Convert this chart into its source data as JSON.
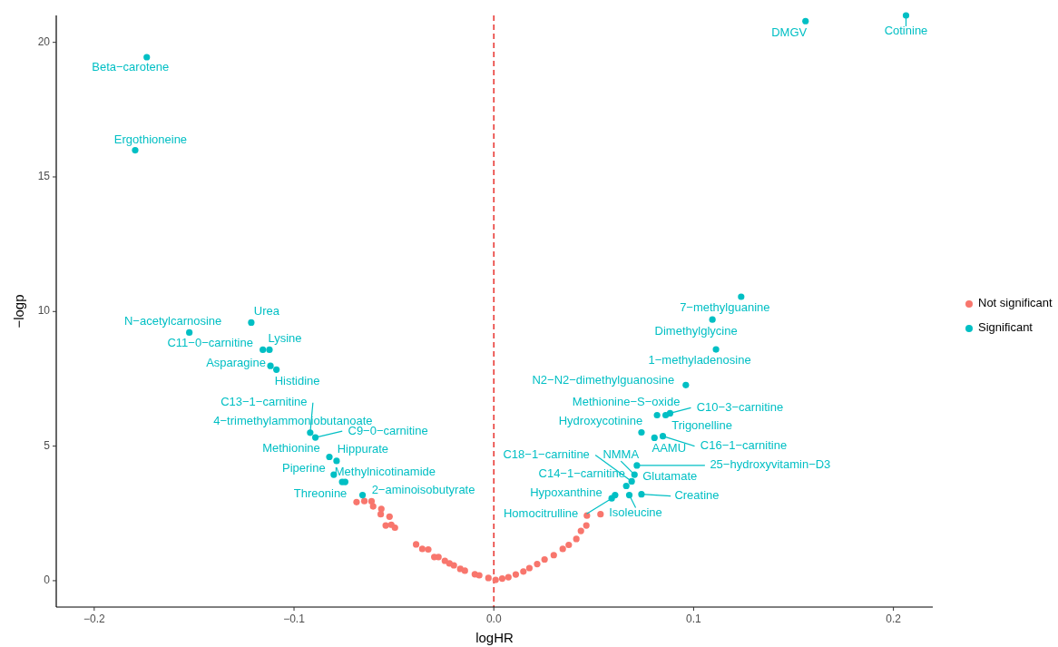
{
  "chart_data": {
    "type": "scatter",
    "xlabel": "logHR",
    "ylabel": "−logp",
    "xlim": [
      -0.219,
      0.2197
    ],
    "ylim": [
      -0.98,
      21.0
    ],
    "xticks": [
      {
        "value": -0.2,
        "label": "−0.2"
      },
      {
        "value": -0.1,
        "label": "−0.1"
      },
      {
        "value": 0,
        "label": "0.0"
      },
      {
        "value": 0.1,
        "label": "0.1"
      },
      {
        "value": 0.2,
        "label": "0.2"
      }
    ],
    "yticks": [
      0,
      5,
      10,
      15,
      20
    ],
    "grid": false,
    "legend": "right",
    "marker": "circle",
    "ref_lines": [
      {
        "axis": "x",
        "value": 0,
        "color": "#e8332e",
        "line_style": "dashed"
      }
    ],
    "series": [
      {
        "name": "Not significant",
        "color": "#f8766d",
        "x": [
          -0.0687,
          -0.0648,
          -0.0612,
          -0.0604,
          -0.0563,
          -0.0566,
          -0.0522,
          -0.0541,
          -0.0513,
          -0.0495,
          -0.0389,
          -0.0358,
          -0.0328,
          -0.0298,
          -0.0277,
          -0.0245,
          -0.0222,
          -0.02,
          -0.0168,
          -0.0145,
          -0.0095,
          -0.0073,
          -0.0027,
          0.0009,
          0.0042,
          0.0073,
          0.011,
          0.0148,
          0.0178,
          0.0217,
          0.0254,
          0.03,
          0.0345,
          0.0375,
          0.0413,
          0.0436,
          0.0463,
          0.0466,
          0.0534
        ],
        "values": [
          2.92,
          2.96,
          2.95,
          2.76,
          2.67,
          2.47,
          2.38,
          2.05,
          2.08,
          1.97,
          1.35,
          1.18,
          1.16,
          0.88,
          0.88,
          0.74,
          0.64,
          0.57,
          0.44,
          0.37,
          0.24,
          0.2,
          0.1,
          0.03,
          0.08,
          0.13,
          0.23,
          0.34,
          0.47,
          0.62,
          0.79,
          0.95,
          1.18,
          1.33,
          1.55,
          1.85,
          2.05,
          2.42,
          2.47
        ]
      },
      {
        "name": "Significant",
        "color": "#00bfc4",
        "x": [
          -0.1737,
          -0.1795,
          -0.1524,
          -0.1214,
          -0.1156,
          -0.1123,
          -0.1118,
          -0.1088,
          -0.0919,
          -0.0893,
          -0.0823,
          -0.0787,
          -0.0801,
          -0.0744,
          -0.0759,
          -0.0657,
          0.156,
          0.2063,
          0.1238,
          0.1094,
          0.1112,
          0.0961,
          0.0817,
          0.086,
          0.0882,
          0.0739,
          0.0804,
          0.0846,
          0.0716,
          0.0704,
          0.069,
          0.0663,
          0.0739,
          0.0678,
          0.0607,
          0.059
        ],
        "values": [
          19.45,
          15.99,
          9.22,
          9.59,
          8.58,
          8.58,
          7.98,
          7.84,
          5.5,
          5.32,
          4.6,
          4.45,
          3.94,
          3.67,
          3.67,
          3.18,
          20.79,
          21.0,
          10.55,
          9.7,
          8.59,
          7.27,
          6.15,
          6.15,
          6.22,
          5.51,
          5.31,
          5.37,
          4.28,
          3.94,
          3.69,
          3.52,
          3.21,
          3.18,
          3.18,
          3.06
        ]
      }
    ],
    "annotations": [
      {
        "text": "Beta−carotene",
        "x": -0.1737,
        "y": 19.45
      },
      {
        "text": "Ergothioneine",
        "x": -0.1795,
        "y": 15.99
      },
      {
        "text": "N−acetylcarnosine",
        "x": -0.1524,
        "y": 9.22
      },
      {
        "text": "Urea",
        "x": -0.1214,
        "y": 9.59
      },
      {
        "text": "C11−0−carnitine",
        "x": -0.1156,
        "y": 8.58
      },
      {
        "text": "Lysine",
        "x": -0.1123,
        "y": 8.58
      },
      {
        "text": "Asparagine",
        "x": -0.1118,
        "y": 7.98
      },
      {
        "text": "Histidine",
        "x": -0.1088,
        "y": 7.84
      },
      {
        "text": "C13−1−carnitine",
        "x": -0.0919,
        "y": 5.5
      },
      {
        "text": "4−trimethylammoniobutanoate",
        "x": -0.0919,
        "y": 5.5
      },
      {
        "text": "C9−0−carnitine",
        "x": -0.0893,
        "y": 5.32
      },
      {
        "text": "Methionine",
        "x": -0.0823,
        "y": 4.6
      },
      {
        "text": "Hippurate",
        "x": -0.0787,
        "y": 4.45
      },
      {
        "text": "Piperine",
        "x": -0.0801,
        "y": 3.94
      },
      {
        "text": "Methylnicotinamide",
        "x": -0.0744,
        "y": 3.67
      },
      {
        "text": "Threonine",
        "x": -0.0759,
        "y": 3.67
      },
      {
        "text": "2−aminoisobutyrate",
        "x": -0.0657,
        "y": 3.18
      },
      {
        "text": "DMGV",
        "x": 0.156,
        "y": 20.79
      },
      {
        "text": "Cotinine",
        "x": 0.2063,
        "y": 21.0
      },
      {
        "text": "7−methylguanine",
        "x": 0.1238,
        "y": 10.55
      },
      {
        "text": "Dimethylglycine",
        "x": 0.1094,
        "y": 9.7
      },
      {
        "text": "1−methyladenosine",
        "x": 0.1112,
        "y": 8.59
      },
      {
        "text": "N2−N2−dimethylguanosine",
        "x": 0.0961,
        "y": 7.27
      },
      {
        "text": "Methionine−S−oxide",
        "x": 0.0817,
        "y": 6.15
      },
      {
        "text": "C10−3−carnitine",
        "x": 0.0882,
        "y": 6.22
      },
      {
        "text": "Trigonelline",
        "x": 0.086,
        "y": 6.15
      },
      {
        "text": "Hydroxycotinine",
        "x": 0.0739,
        "y": 5.51
      },
      {
        "text": "AAMU",
        "x": 0.0804,
        "y": 5.31
      },
      {
        "text": "C16−1−carnitine",
        "x": 0.0846,
        "y": 5.37
      },
      {
        "text": "C18−1−carnitine",
        "x": 0.069,
        "y": 3.69
      },
      {
        "text": "NMMA",
        "x": 0.0704,
        "y": 3.94
      },
      {
        "text": "25−hydroxyvitamin−D3",
        "x": 0.0716,
        "y": 4.28
      },
      {
        "text": "Glutamate",
        "x": 0.0704,
        "y": 3.94
      },
      {
        "text": "C14−1−carnitine",
        "x": 0.0663,
        "y": 3.52
      },
      {
        "text": "Creatine",
        "x": 0.0739,
        "y": 3.21
      },
      {
        "text": "Isoleucine",
        "x": 0.0678,
        "y": 3.18
      },
      {
        "text": "Hypoxanthine",
        "x": 0.0607,
        "y": 3.18
      },
      {
        "text": "Homocitrulline",
        "x": 0.059,
        "y": 3.06
      }
    ]
  }
}
